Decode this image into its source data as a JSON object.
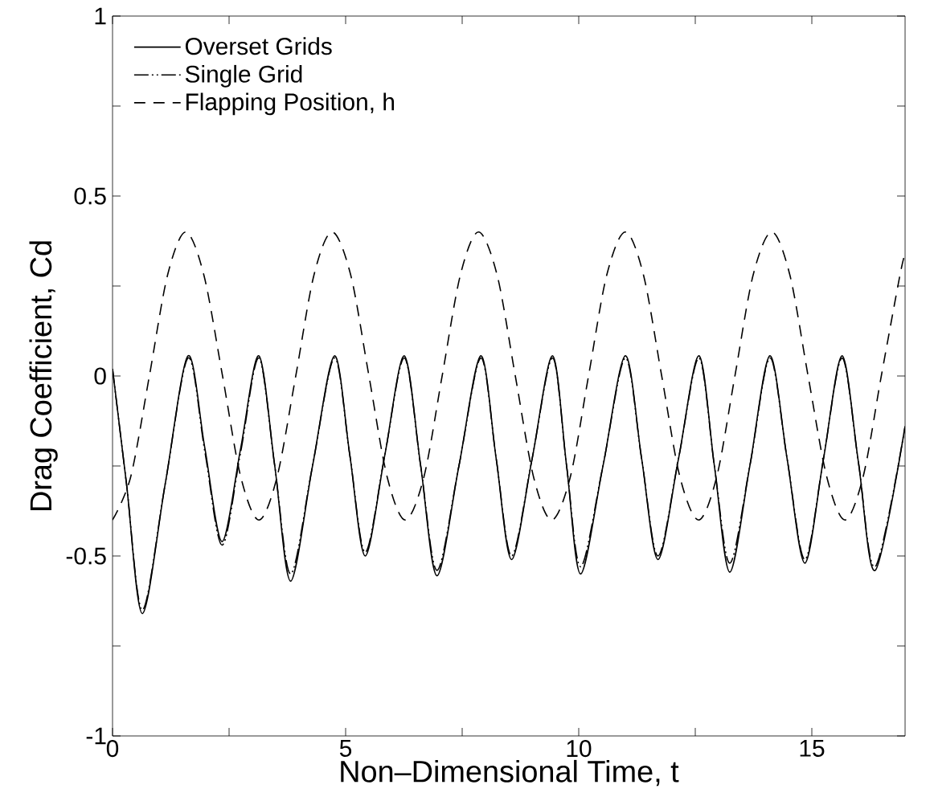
{
  "chart_data": {
    "type": "line",
    "xlabel": "Non–Dimensional Time, t",
    "ylabel": "Drag Coefficient, Cd",
    "xlim": [
      0,
      17
    ],
    "ylim": [
      -1,
      1
    ],
    "xticks": [
      0,
      {
        "value": 2.5,
        "label": null
      },
      5,
      {
        "value": 7.5,
        "label": null
      },
      10,
      {
        "value": 12.5,
        "label": null
      },
      15
    ],
    "yticks": [
      -1,
      {
        "value": -0.75,
        "label": null
      },
      -0.5,
      {
        "value": -0.25,
        "label": null
      },
      0,
      {
        "value": 0.25,
        "label": null
      },
      0.5,
      {
        "value": 0.75,
        "label": null
      },
      1
    ],
    "legend": "top left",
    "grid": false,
    "marker": "none",
    "series": [
      {
        "name": "Overset Grids",
        "color": "#000000",
        "line_style": "solid",
        "x": [
          0,
          0.3,
          0.64,
          1.13,
          1.62,
          1.98,
          2.35,
          2.75,
          3.14,
          3.48,
          3.82,
          4.29,
          4.76,
          5.09,
          5.42,
          5.84,
          6.26,
          6.61,
          6.96,
          7.43,
          7.9,
          8.23,
          8.56,
          9.0,
          9.44,
          9.74,
          10.04,
          10.52,
          11.0,
          11.35,
          11.7,
          12.14,
          12.58,
          12.91,
          13.24,
          13.67,
          14.1,
          14.47,
          14.85,
          15.25,
          15.65,
          16.0,
          16.36,
          17.0
        ],
        "values": [
          0.02,
          -0.3,
          -0.66,
          -0.3,
          0.056,
          -0.2,
          -0.46,
          -0.2,
          0.056,
          -0.25,
          -0.57,
          -0.25,
          0.056,
          -0.22,
          -0.5,
          -0.22,
          0.056,
          -0.25,
          -0.555,
          -0.25,
          0.056,
          -0.23,
          -0.51,
          -0.23,
          0.056,
          -0.25,
          -0.55,
          -0.25,
          0.056,
          -0.23,
          -0.51,
          -0.23,
          0.056,
          -0.25,
          -0.545,
          -0.25,
          0.056,
          -0.23,
          -0.52,
          -0.23,
          0.056,
          -0.24,
          -0.54,
          -0.14
        ]
      },
      {
        "name": "Single Grid",
        "color": "#000000",
        "line_style": "dashdotdot",
        "x": [
          0,
          0.3,
          0.64,
          1.13,
          1.62,
          1.98,
          2.35,
          2.75,
          3.14,
          3.48,
          3.82,
          4.29,
          4.76,
          5.09,
          5.42,
          5.84,
          6.26,
          6.61,
          6.96,
          7.43,
          7.9,
          8.23,
          8.56,
          9.0,
          9.44,
          9.74,
          10.04,
          10.52,
          11.0,
          11.35,
          11.7,
          12.14,
          12.58,
          12.91,
          13.24,
          13.67,
          14.1,
          14.47,
          14.85,
          15.25,
          15.65,
          16.0,
          16.36,
          17.0
        ],
        "values": [
          0.02,
          -0.3,
          -0.65,
          -0.3,
          0.05,
          -0.21,
          -0.47,
          -0.21,
          0.05,
          -0.25,
          -0.55,
          -0.25,
          0.05,
          -0.22,
          -0.49,
          -0.22,
          0.05,
          -0.25,
          -0.54,
          -0.25,
          0.05,
          -0.23,
          -0.5,
          -0.23,
          0.05,
          -0.25,
          -0.53,
          -0.25,
          0.05,
          -0.23,
          -0.5,
          -0.23,
          0.05,
          -0.25,
          -0.52,
          -0.25,
          0.05,
          -0.23,
          -0.51,
          -0.23,
          0.05,
          -0.24,
          -0.53,
          -0.14
        ]
      },
      {
        "name": "Flapping Position, h",
        "color": "#000000",
        "line_style": "dashed",
        "x": [
          0,
          0.39,
          0.79,
          1.18,
          1.57,
          1.96,
          2.36,
          2.75,
          3.14,
          3.53,
          3.93,
          4.32,
          4.71,
          5.11,
          5.5,
          5.89,
          6.28,
          6.68,
          7.07,
          7.46,
          7.85,
          8.25,
          8.64,
          9.03,
          9.42,
          9.82,
          10.21,
          10.6,
          11.0,
          11.39,
          11.78,
          12.17,
          12.57,
          12.96,
          13.35,
          13.74,
          14.14,
          14.53,
          14.92,
          15.32,
          15.71,
          16.1,
          16.49,
          16.89,
          17.0
        ],
        "values": [
          -0.4,
          -0.28,
          0,
          0.28,
          0.4,
          0.28,
          0,
          -0.28,
          -0.4,
          -0.28,
          0,
          0.28,
          0.4,
          0.28,
          0,
          -0.28,
          -0.4,
          -0.28,
          0,
          0.28,
          0.4,
          0.28,
          0,
          -0.28,
          -0.4,
          -0.28,
          0,
          0.28,
          0.4,
          0.28,
          0,
          -0.28,
          -0.4,
          -0.28,
          0,
          0.28,
          0.4,
          0.28,
          0,
          -0.28,
          -0.4,
          -0.28,
          0,
          0.28,
          0.34
        ]
      }
    ]
  }
}
